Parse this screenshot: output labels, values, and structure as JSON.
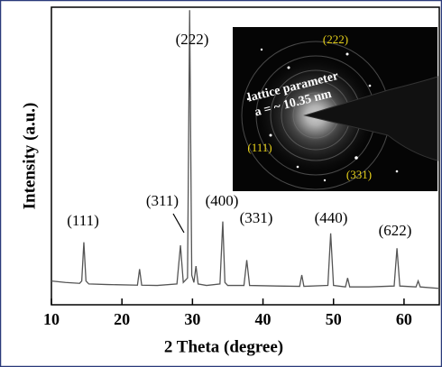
{
  "chart_data": {
    "type": "line",
    "xlabel": "2 Theta (degree)",
    "ylabel": "Intensity (a.u.)",
    "xlim": [
      10,
      65
    ],
    "xticks": [
      10,
      20,
      30,
      40,
      50,
      60
    ],
    "ylim": [
      0,
      100
    ],
    "series": [
      {
        "color": "#555555",
        "x": [
          10,
          12,
          14,
          14.3,
          14.6,
          14.9,
          15.3,
          18,
          22.2,
          22.5,
          22.8,
          25,
          27.8,
          28.3,
          28.7,
          29.3,
          29.6,
          29.9,
          30.2,
          30.5,
          30.8,
          32,
          33.9,
          34.3,
          34.6,
          35,
          37.3,
          37.7,
          38.1,
          42,
          45.2,
          45.5,
          45.8,
          49.2,
          49.6,
          50,
          51.7,
          52,
          52.3,
          55,
          58.6,
          59,
          59.4,
          61.7,
          62,
          62.3,
          65
        ],
        "values": [
          8,
          7.5,
          7.2,
          8,
          21,
          8,
          7,
          6.8,
          6.6,
          12,
          6.6,
          6.5,
          7,
          20,
          7.5,
          9,
          99,
          10,
          7.5,
          13,
          7,
          6.5,
          7,
          28,
          7.5,
          6.5,
          6.5,
          15,
          6.5,
          6.3,
          6.2,
          10,
          6.2,
          6.5,
          24,
          6.5,
          6,
          9,
          6,
          6,
          6.3,
          19,
          6.3,
          6,
          8,
          6,
          5.5
        ]
      }
    ],
    "annotations": [
      "(111)",
      "(311)",
      "(222)",
      "(400)",
      "(331)",
      "(440)",
      "(622)"
    ],
    "inset_labels": [
      "(222)",
      "lattice parameter",
      "a = ~ 10.35 nm",
      "(111)",
      "(331)"
    ]
  }
}
